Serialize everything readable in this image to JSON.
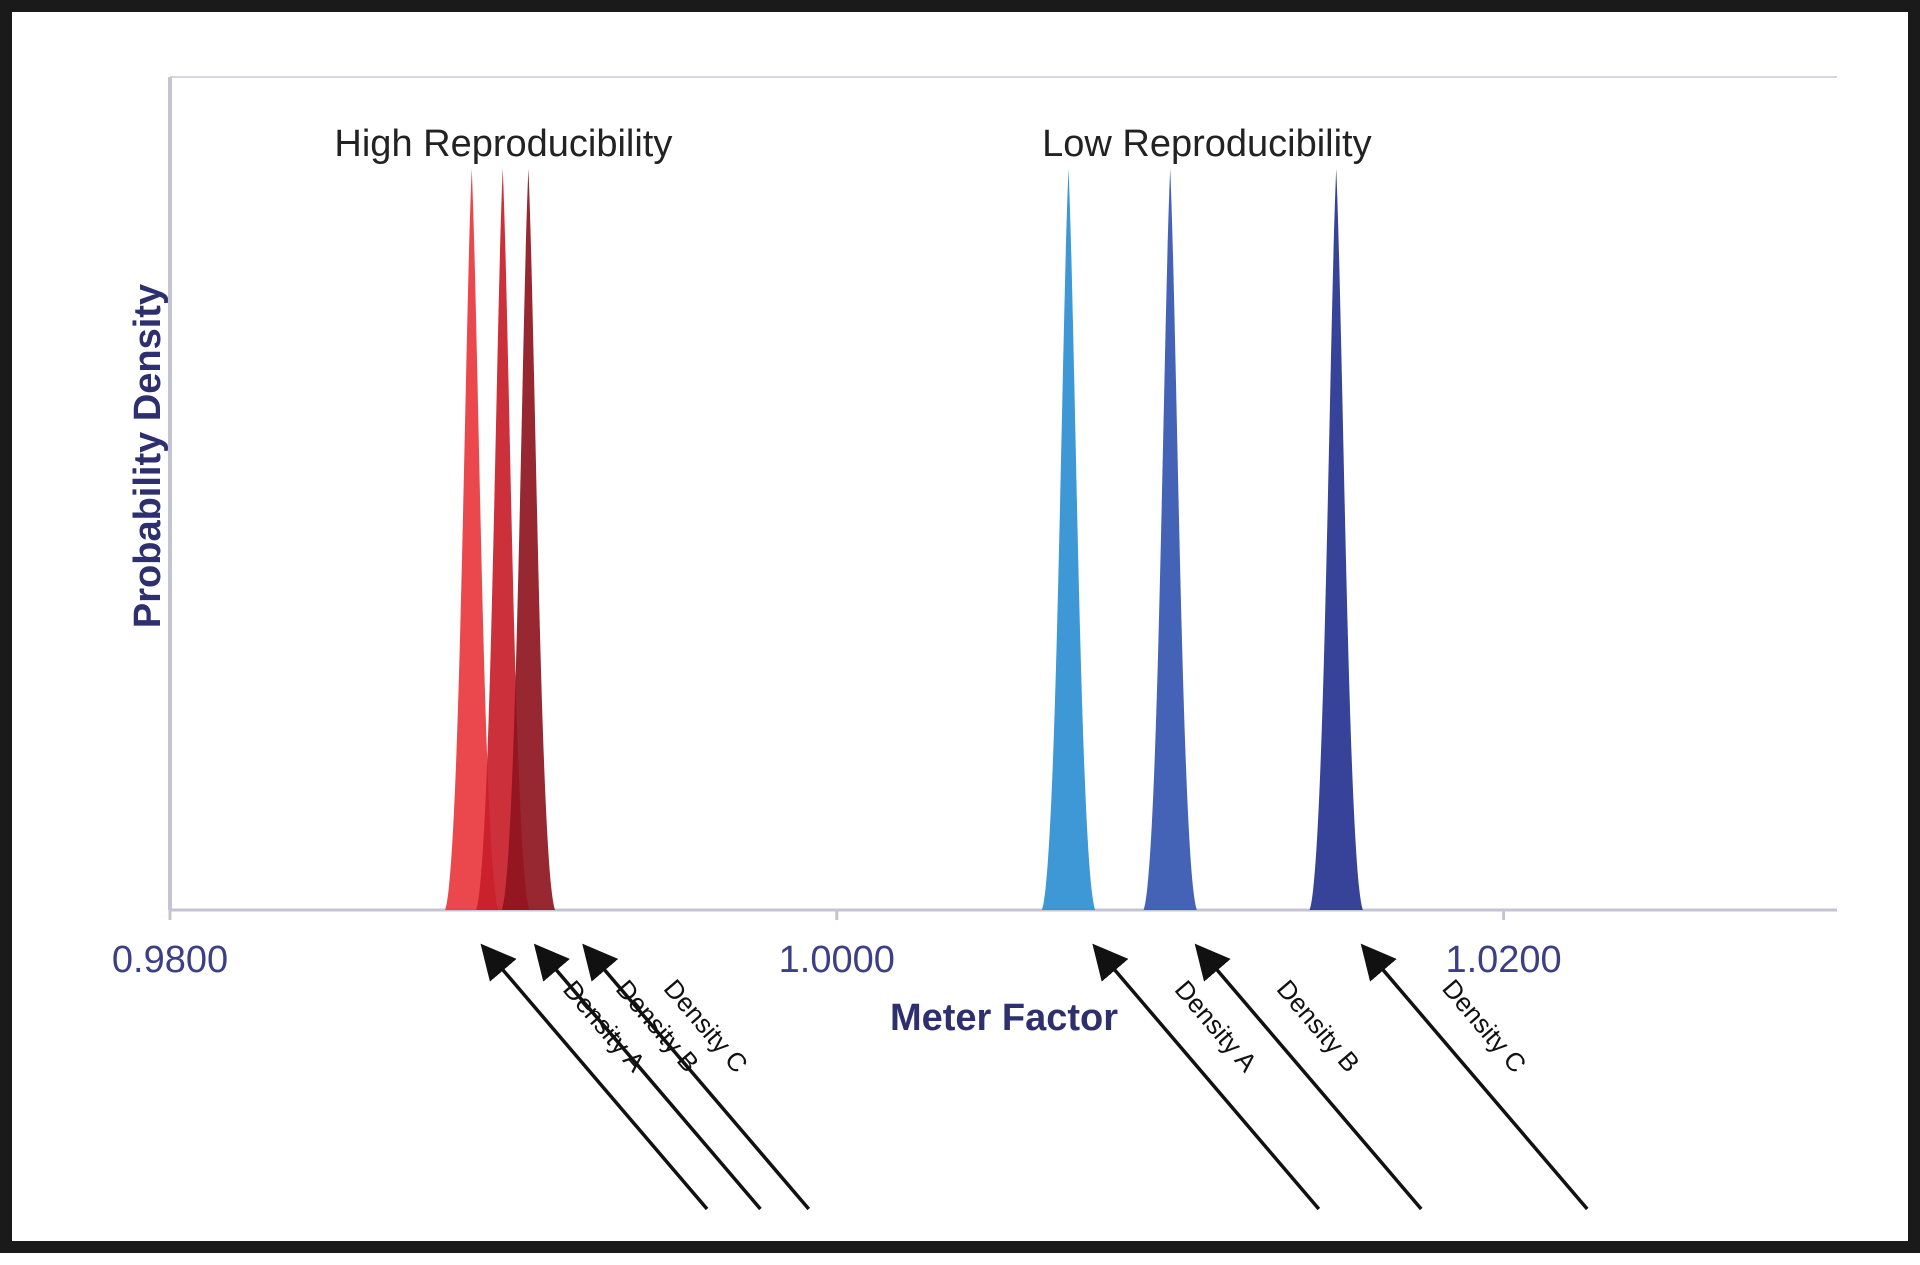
{
  "chart_data": {
    "type": "area",
    "xlabel": "Meter Factor",
    "ylabel": "Probability Density",
    "xlim": [
      0.98,
      1.03
    ],
    "ylim": [
      0,
      1.0
    ],
    "x_ticks": [
      "0.9800",
      "1.0000",
      "1.0200"
    ],
    "x_tick_values": [
      0.98,
      1.0,
      1.02
    ],
    "grid": false,
    "groups": [
      {
        "label": "High Reproducibility",
        "label_x": 0.99
      },
      {
        "label": "Low Reproducibility",
        "label_x": 1.0111
      }
    ],
    "series": [
      {
        "name": "Density A",
        "group": "High Reproducibility",
        "mean": 0.98905,
        "halfwidth": 0.0008,
        "peak": 0.89,
        "color": "#e8383d"
      },
      {
        "name": "Density B",
        "group": "High Reproducibility",
        "mean": 0.98998,
        "halfwidth": 0.0008,
        "peak": 0.89,
        "color": "#c81e2a"
      },
      {
        "name": "Density C",
        "group": "High Reproducibility",
        "mean": 0.99075,
        "halfwidth": 0.0008,
        "peak": 0.89,
        "color": "#8e1520"
      },
      {
        "name": "Density A",
        "group": "Low Reproducibility",
        "mean": 1.00695,
        "halfwidth": 0.0008,
        "peak": 0.89,
        "color": "#2c8fd1"
      },
      {
        "name": "Density B",
        "group": "Low Reproducibility",
        "mean": 1.01,
        "halfwidth": 0.0008,
        "peak": 0.89,
        "color": "#3456b0"
      },
      {
        "name": "Density C",
        "group": "Low Reproducibility",
        "mean": 1.01498,
        "halfwidth": 0.0008,
        "peak": 0.89,
        "color": "#25338f"
      }
    ],
    "annotations": [
      {
        "text": "Density A",
        "target_x": 0.98945
      },
      {
        "text": "Density B",
        "target_x": 0.99105
      },
      {
        "text": "Density C",
        "target_x": 0.9925
      },
      {
        "text": "Density A",
        "target_x": 1.0078
      },
      {
        "text": "Density B",
        "target_x": 1.01087
      },
      {
        "text": "Density C",
        "target_x": 1.01585
      }
    ]
  }
}
